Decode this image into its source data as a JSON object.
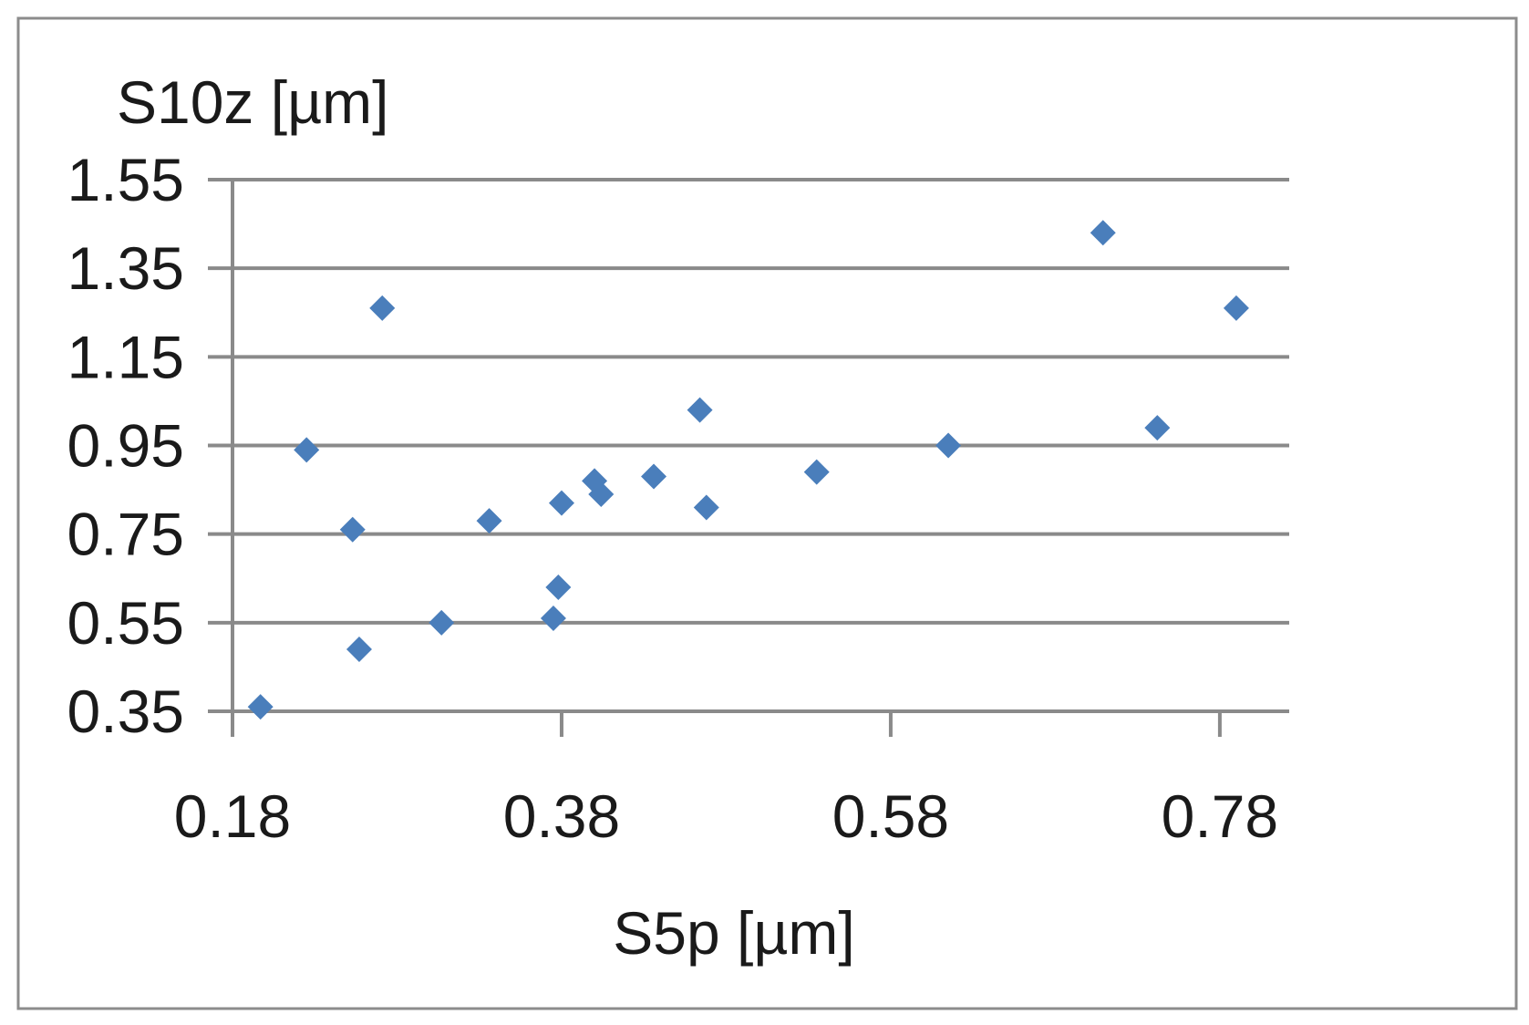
{
  "chart_data": {
    "type": "scatter",
    "title": "",
    "xlabel": "S5p [µm]",
    "ylabel": "S10z [µm]",
    "xlim": [
      0.18,
      0.8
    ],
    "ylim": [
      0.35,
      1.55
    ],
    "xticks": [
      "0.18",
      "0.38",
      "0.58",
      "0.78"
    ],
    "yticks": [
      "1.55",
      "1.35",
      "1.15",
      "0.95",
      "0.75",
      "0.55",
      "0.35"
    ],
    "grid": "horizontal",
    "legend": "none",
    "marker": "diamond",
    "series": [
      {
        "color": "#4a7ebb",
        "points": [
          {
            "x": 0.197,
            "y": 0.36
          },
          {
            "x": 0.225,
            "y": 0.94
          },
          {
            "x": 0.253,
            "y": 0.76
          },
          {
            "x": 0.257,
            "y": 0.49
          },
          {
            "x": 0.271,
            "y": 1.26
          },
          {
            "x": 0.307,
            "y": 0.55
          },
          {
            "x": 0.336,
            "y": 0.78
          },
          {
            "x": 0.375,
            "y": 0.56
          },
          {
            "x": 0.378,
            "y": 0.63
          },
          {
            "x": 0.38,
            "y": 0.82
          },
          {
            "x": 0.4,
            "y": 0.87
          },
          {
            "x": 0.404,
            "y": 0.84
          },
          {
            "x": 0.436,
            "y": 0.88
          },
          {
            "x": 0.464,
            "y": 1.03
          },
          {
            "x": 0.468,
            "y": 0.81
          },
          {
            "x": 0.535,
            "y": 0.89
          },
          {
            "x": 0.615,
            "y": 0.95
          },
          {
            "x": 0.709,
            "y": 1.43
          },
          {
            "x": 0.742,
            "y": 0.99
          },
          {
            "x": 0.79,
            "y": 1.26
          }
        ]
      }
    ]
  }
}
